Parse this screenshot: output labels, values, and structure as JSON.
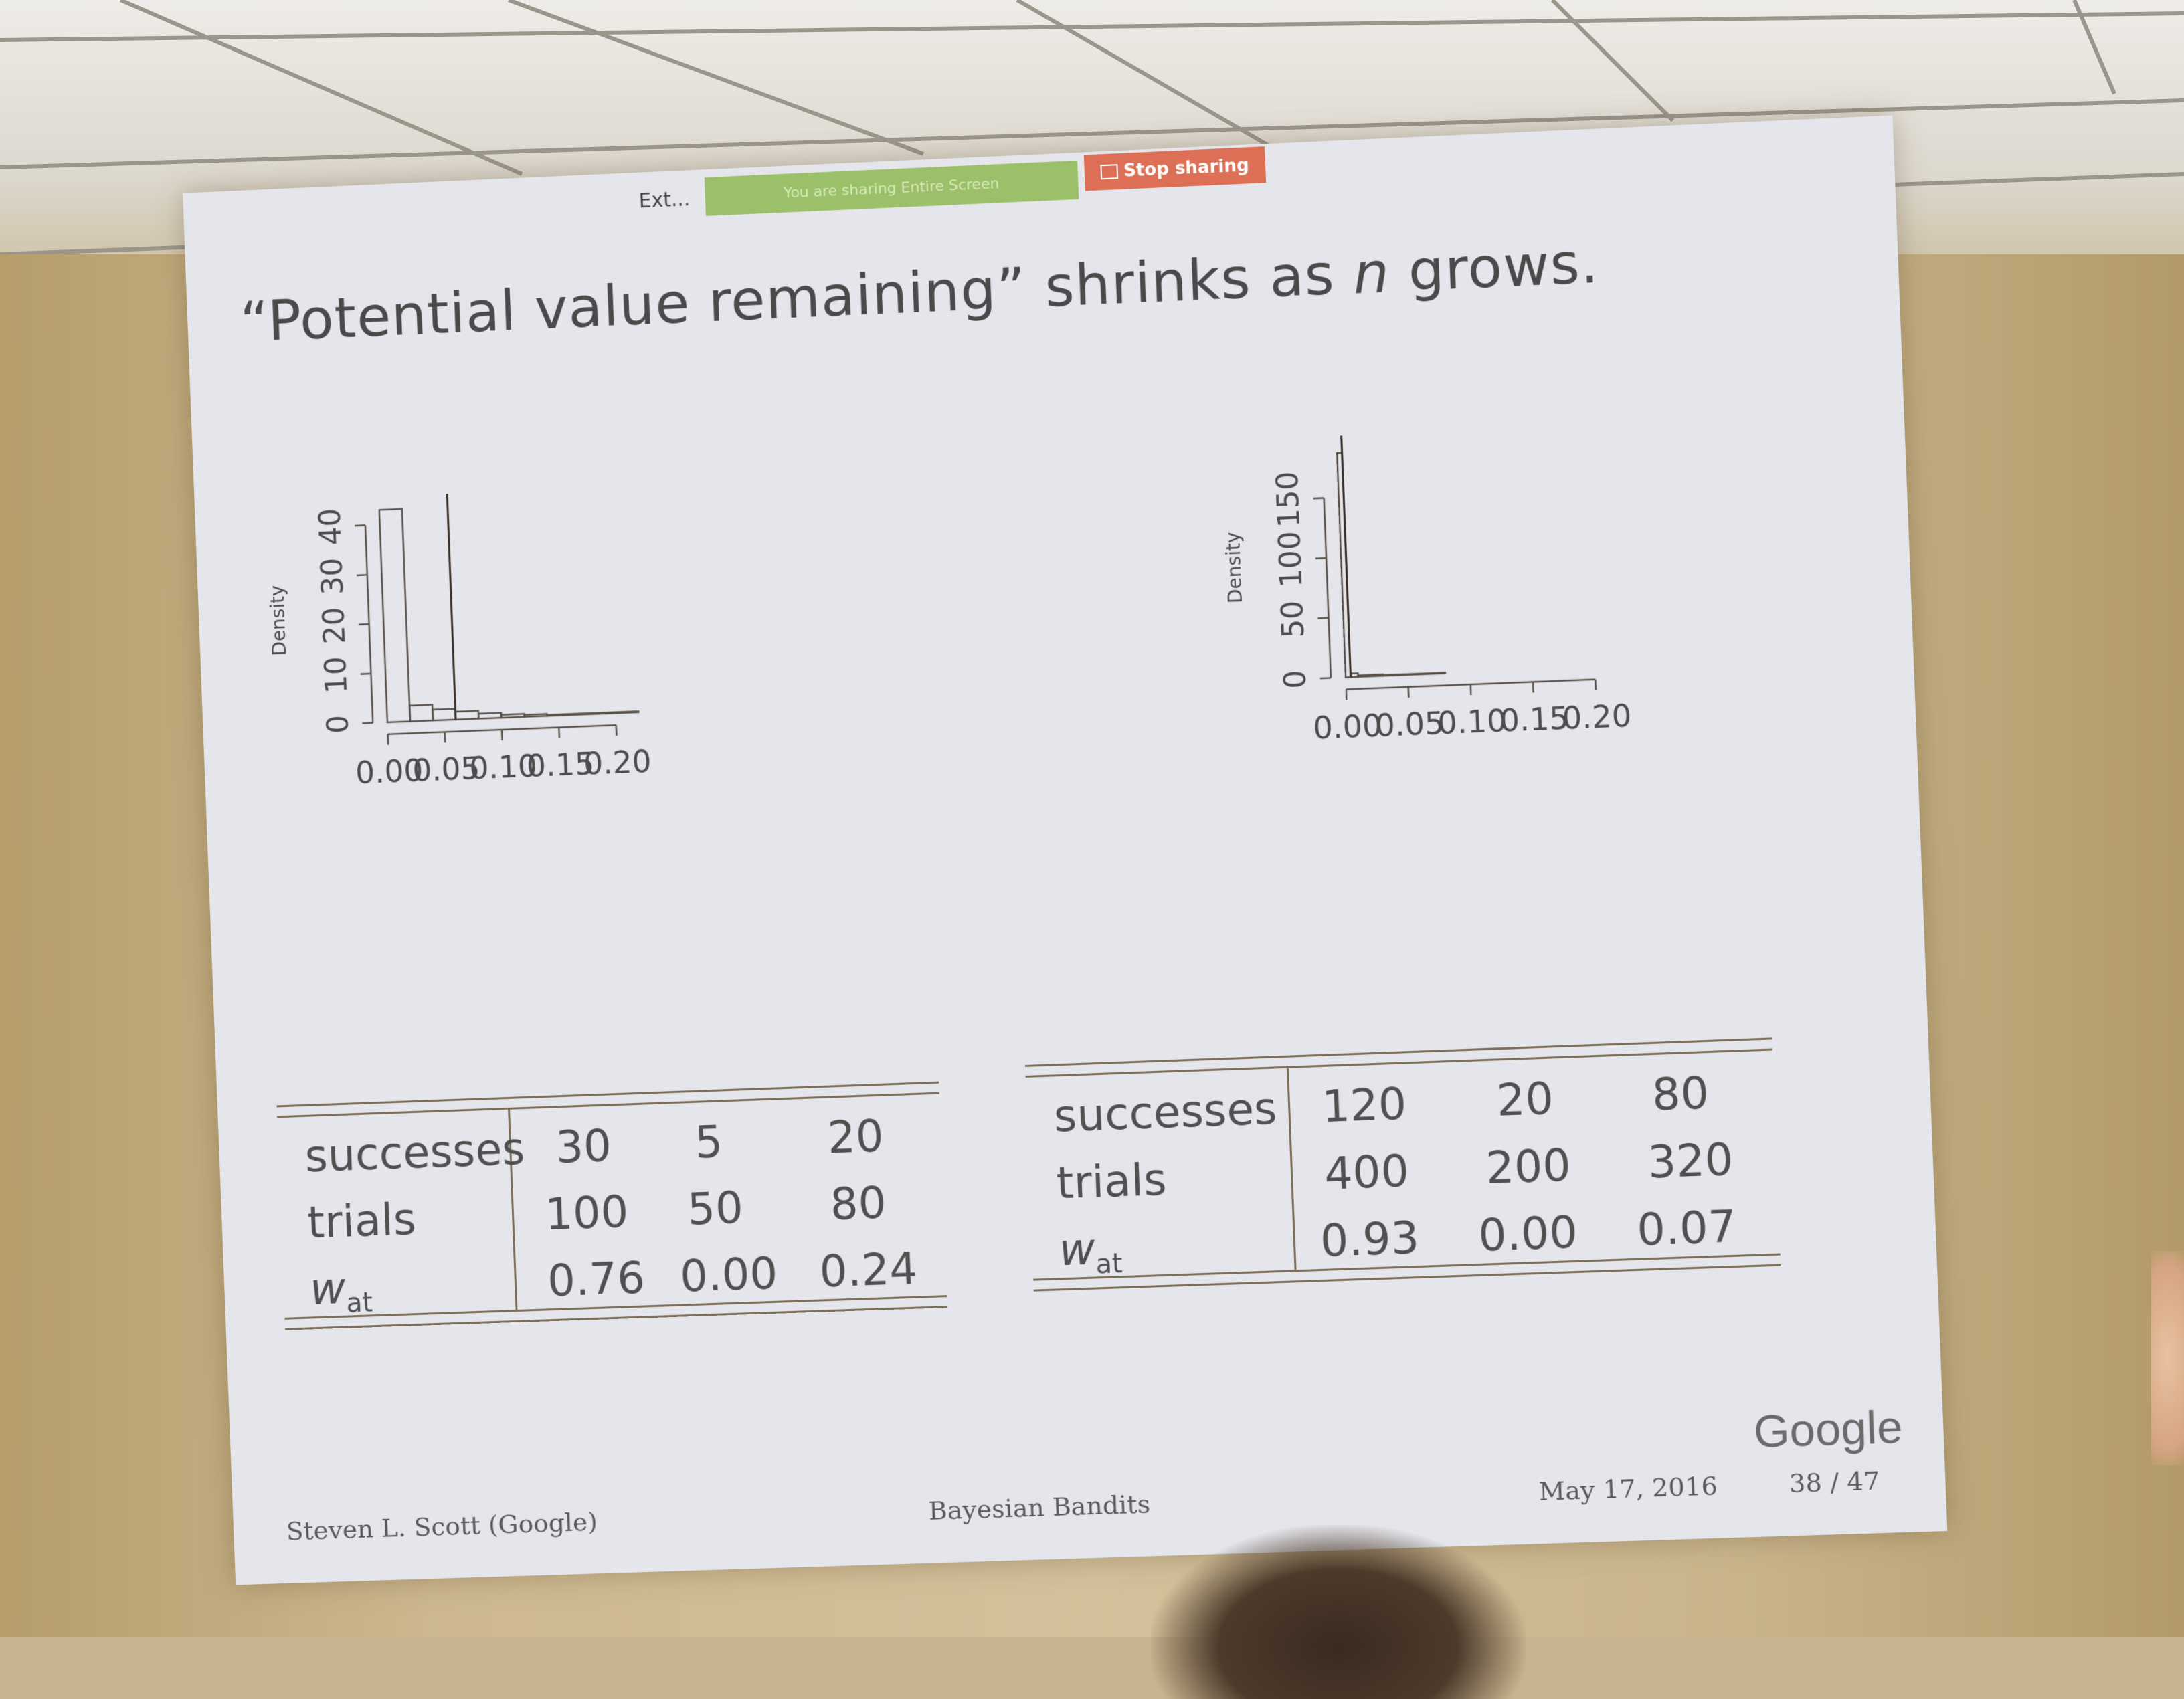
{
  "share_bar": {
    "ext_label": "Ext...",
    "sharing_notice": "You are sharing Entire Screen",
    "stop_label": "Stop sharing"
  },
  "slide": {
    "title_open_quote": "“",
    "title_phrase": "Potential value remaining",
    "title_close_quote": "”",
    "title_mid": "shrinks as",
    "title_var": "n",
    "title_end": "grows."
  },
  "plot_left": {
    "ylabel": "Density",
    "yticks": [
      "0",
      "10",
      "20",
      "30",
      "40"
    ],
    "xticks": [
      "0.00",
      "0.05",
      "0.10",
      "0.15",
      "0.20"
    ]
  },
  "plot_right": {
    "ylabel": "Density",
    "yticks": [
      "0",
      "50",
      "100",
      "150"
    ],
    "xticks": [
      "0.00",
      "0.05",
      "0.10",
      "0.15",
      "0.20"
    ]
  },
  "chart_data": [
    {
      "type": "bar",
      "xlabel": "",
      "ylabel": "Density",
      "xlim": [
        0,
        0.22
      ],
      "ylim": [
        0,
        43
      ],
      "bins": [
        {
          "x0": 0.0,
          "x1": 0.02,
          "density": 43
        },
        {
          "x0": 0.02,
          "x1": 0.04,
          "density": 3.2
        },
        {
          "x0": 0.04,
          "x1": 0.06,
          "density": 2.2
        },
        {
          "x0": 0.06,
          "x1": 0.08,
          "density": 1.6
        },
        {
          "x0": 0.08,
          "x1": 0.1,
          "density": 1.0
        },
        {
          "x0": 0.1,
          "x1": 0.12,
          "density": 0.6
        },
        {
          "x0": 0.12,
          "x1": 0.14,
          "density": 0.4
        },
        {
          "x0": 0.14,
          "x1": 0.22,
          "density": 0.2
        }
      ],
      "vline": 0.06
    },
    {
      "type": "bar",
      "xlabel": "",
      "ylabel": "Density",
      "xlim": [
        0,
        0.2
      ],
      "ylim": [
        0,
        190
      ],
      "bins": [
        {
          "x0": 0.0,
          "x1": 0.004,
          "density": 187
        },
        {
          "x0": 0.004,
          "x1": 0.01,
          "density": 3
        },
        {
          "x0": 0.01,
          "x1": 0.03,
          "density": 1.2
        },
        {
          "x0": 0.03,
          "x1": 0.08,
          "density": 0.6
        }
      ],
      "vline": 0.004
    }
  ],
  "table_left": {
    "rows": [
      {
        "label": "successes",
        "values": [
          "30",
          "5",
          "20"
        ]
      },
      {
        "label": "trials",
        "values": [
          "100",
          "50",
          "80"
        ]
      },
      {
        "label": "w",
        "sub": "at",
        "values": [
          "0.76",
          "0.00",
          "0.24"
        ]
      }
    ]
  },
  "table_right": {
    "rows": [
      {
        "label": "successes",
        "values": [
          "120",
          "20",
          "80"
        ]
      },
      {
        "label": "trials",
        "values": [
          "400",
          "200",
          "320"
        ]
      },
      {
        "label": "w",
        "sub": "at",
        "values": [
          "0.93",
          "0.00",
          "0.07"
        ]
      }
    ]
  },
  "footer": {
    "author": "Steven L. Scott  (Google)",
    "talk": "Bayesian Bandits",
    "date": "May 17, 2016",
    "page": "38 / 47",
    "logo": "Google"
  }
}
